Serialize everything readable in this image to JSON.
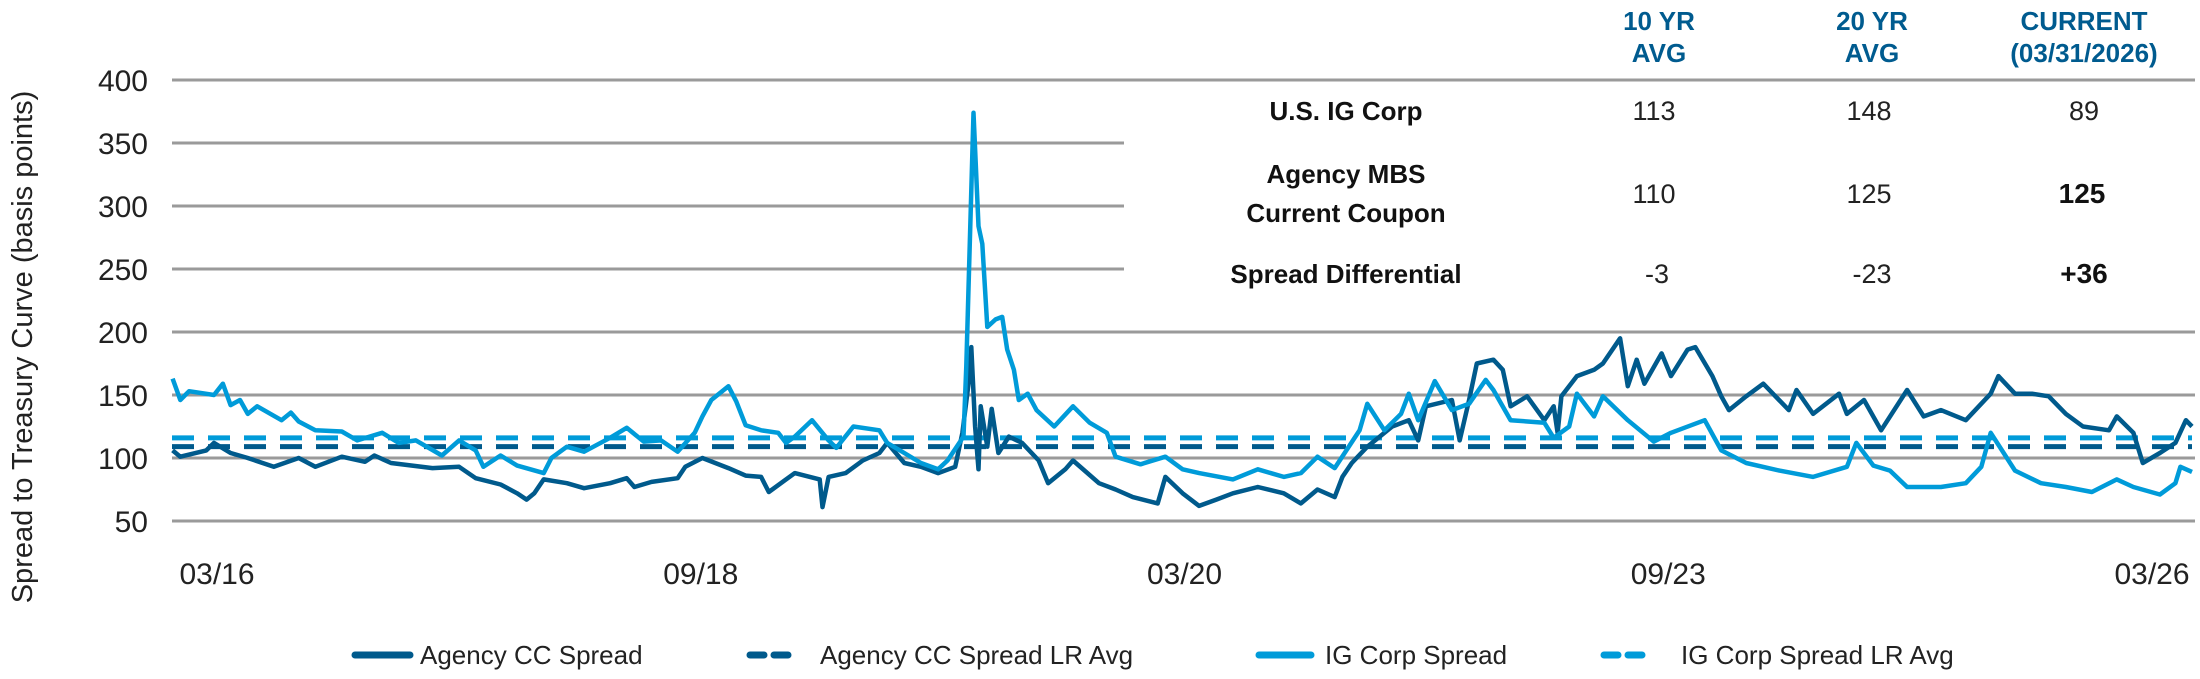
{
  "chart_data": {
    "type": "line",
    "ylabel": "Spread to Treasury Curve (basis points)",
    "ylim": [
      50,
      400
    ],
    "yticks": [
      "400",
      "350",
      "300",
      "250",
      "200",
      "150",
      "100",
      "50"
    ],
    "xlim": [
      "2016-03-31",
      "2026-03-31"
    ],
    "xticks": [
      "03/16",
      "09/18",
      "03/20",
      "09/23",
      "03/26"
    ],
    "grid": true,
    "legend_position": "bottom",
    "colors": {
      "agency": "#005a8c",
      "ig": "#009bd9",
      "grid": "#9a9a9a",
      "header": "#005b8f"
    },
    "series": [
      {
        "name": "Agency CC Spread",
        "style": "solid",
        "color": "#005a8c",
        "points": [
          [
            "2016-04-01",
            106
          ],
          [
            "2016-04-15",
            101
          ],
          [
            "2016-06-01",
            106
          ],
          [
            "2016-06-15",
            112
          ],
          [
            "2016-07-15",
            104
          ],
          [
            "2016-08-15",
            100
          ],
          [
            "2016-10-01",
            93
          ],
          [
            "2016-11-15",
            100
          ],
          [
            "2016-12-15",
            93
          ],
          [
            "2017-02-01",
            101
          ],
          [
            "2017-03-15",
            97
          ],
          [
            "2017-04-01",
            102
          ],
          [
            "2017-05-01",
            96
          ],
          [
            "2017-07-15",
            92
          ],
          [
            "2017-09-01",
            93
          ],
          [
            "2017-10-01",
            84
          ],
          [
            "2017-11-15",
            79
          ],
          [
            "2017-12-15",
            72
          ],
          [
            "2018-01-01",
            67
          ],
          [
            "2018-01-15",
            72
          ],
          [
            "2018-02-01",
            83
          ],
          [
            "2018-03-15",
            80
          ],
          [
            "2018-04-15",
            76
          ],
          [
            "2018-06-01",
            80
          ],
          [
            "2018-07-01",
            84
          ],
          [
            "2018-07-15",
            77
          ],
          [
            "2018-08-15",
            81
          ],
          [
            "2018-10-01",
            84
          ],
          [
            "2018-10-15",
            93
          ],
          [
            "2018-11-15",
            100
          ],
          [
            "2019-01-01",
            92
          ],
          [
            "2019-02-01",
            86
          ],
          [
            "2019-03-01",
            85
          ],
          [
            "2019-03-15",
            73
          ],
          [
            "2019-04-15",
            83
          ],
          [
            "2019-05-01",
            88
          ],
          [
            "2019-06-15",
            83
          ],
          [
            "2019-06-20",
            61
          ],
          [
            "2019-07-01",
            85
          ],
          [
            "2019-08-01",
            88
          ],
          [
            "2019-09-01",
            98
          ],
          [
            "2019-10-01",
            104
          ],
          [
            "2019-10-15",
            112
          ],
          [
            "2019-11-15",
            96
          ],
          [
            "2019-12-15",
            93
          ],
          [
            "2020-01-15",
            88
          ],
          [
            "2020-02-15",
            93
          ],
          [
            "2020-02-28",
            120
          ],
          [
            "2020-03-11",
            162
          ],
          [
            "2020-03-15",
            188
          ],
          [
            "2020-03-22",
            125
          ],
          [
            "2020-03-28",
            91
          ],
          [
            "2020-04-01",
            141
          ],
          [
            "2020-04-13",
            109
          ],
          [
            "2020-04-21",
            139
          ],
          [
            "2020-05-03",
            104
          ],
          [
            "2020-05-22",
            117
          ],
          [
            "2020-06-15",
            112
          ],
          [
            "2020-07-15",
            98
          ],
          [
            "2020-08-01",
            80
          ],
          [
            "2020-09-01",
            91
          ],
          [
            "2020-09-15",
            98
          ],
          [
            "2020-11-01",
            80
          ],
          [
            "2020-12-01",
            75
          ],
          [
            "2021-01-01",
            69
          ],
          [
            "2021-02-15",
            64
          ],
          [
            "2021-03-01",
            85
          ],
          [
            "2021-04-01",
            72
          ],
          [
            "2021-05-01",
            62
          ],
          [
            "2021-06-01",
            67
          ],
          [
            "2021-07-01",
            72
          ],
          [
            "2021-08-15",
            77
          ],
          [
            "2021-10-01",
            72
          ],
          [
            "2021-11-01",
            64
          ],
          [
            "2021-12-01",
            75
          ],
          [
            "2022-01-01",
            69
          ],
          [
            "2022-01-15",
            85
          ],
          [
            "2022-02-01",
            96
          ],
          [
            "2022-03-01",
            109
          ],
          [
            "2022-04-15",
            125
          ],
          [
            "2022-05-15",
            130
          ],
          [
            "2022-06-01",
            114
          ],
          [
            "2022-06-15",
            141
          ],
          [
            "2022-08-01",
            146
          ],
          [
            "2022-08-15",
            114
          ],
          [
            "2022-09-01",
            146
          ],
          [
            "2022-09-15",
            175
          ],
          [
            "2022-10-15",
            178
          ],
          [
            "2022-11-01",
            170
          ],
          [
            "2022-11-15",
            141
          ],
          [
            "2022-12-15",
            149
          ],
          [
            "2023-01-15",
            130
          ],
          [
            "2023-02-01",
            141
          ],
          [
            "2023-02-08",
            120
          ],
          [
            "2023-02-15",
            149
          ],
          [
            "2023-03-15",
            165
          ],
          [
            "2023-04-15",
            170
          ],
          [
            "2023-05-01",
            175
          ],
          [
            "2023-06-01",
            195
          ],
          [
            "2023-06-15",
            157
          ],
          [
            "2023-07-01",
            178
          ],
          [
            "2023-07-15",
            159
          ],
          [
            "2023-08-15",
            183
          ],
          [
            "2023-09-01",
            165
          ],
          [
            "2023-10-01",
            186
          ],
          [
            "2023-10-15",
            188
          ],
          [
            "2023-11-15",
            165
          ],
          [
            "2023-12-01",
            149
          ],
          [
            "2023-12-15",
            138
          ],
          [
            "2024-01-15",
            149
          ],
          [
            "2024-02-15",
            159
          ],
          [
            "2024-04-01",
            138
          ],
          [
            "2024-04-15",
            154
          ],
          [
            "2024-05-15",
            135
          ],
          [
            "2024-07-01",
            151
          ],
          [
            "2024-07-15",
            135
          ],
          [
            "2024-08-15",
            146
          ],
          [
            "2024-09-15",
            122
          ],
          [
            "2024-11-01",
            154
          ],
          [
            "2024-12-01",
            133
          ],
          [
            "2025-01-01",
            138
          ],
          [
            "2025-02-15",
            130
          ],
          [
            "2025-04-01",
            151
          ],
          [
            "2025-04-15",
            165
          ],
          [
            "2025-05-15",
            151
          ],
          [
            "2025-06-15",
            151
          ],
          [
            "2025-07-15",
            149
          ],
          [
            "2025-08-15",
            135
          ],
          [
            "2025-09-15",
            125
          ],
          [
            "2025-11-01",
            122
          ],
          [
            "2025-11-15",
            133
          ],
          [
            "2025-12-15",
            120
          ],
          [
            "2026-01-01",
            96
          ],
          [
            "2026-02-01",
            104
          ],
          [
            "2026-03-01",
            112
          ],
          [
            "2026-03-20",
            130
          ],
          [
            "2026-03-31",
            125
          ]
        ]
      },
      {
        "name": "Agency CC Spread LR Avg",
        "style": "dashed",
        "color": "#005a8c",
        "value": 109
      },
      {
        "name": "IG Corp Spread",
        "style": "solid",
        "color": "#009bd9",
        "points": [
          [
            "2016-04-01",
            163
          ],
          [
            "2016-04-15",
            146
          ],
          [
            "2016-05-01",
            153
          ],
          [
            "2016-06-15",
            150
          ],
          [
            "2016-07-01",
            159
          ],
          [
            "2016-07-15",
            142
          ],
          [
            "2016-08-01",
            146
          ],
          [
            "2016-08-15",
            135
          ],
          [
            "2016-09-01",
            141
          ],
          [
            "2016-10-15",
            130
          ],
          [
            "2016-11-01",
            136
          ],
          [
            "2016-11-15",
            129
          ],
          [
            "2016-12-15",
            122
          ],
          [
            "2017-02-01",
            121
          ],
          [
            "2017-03-01",
            114
          ],
          [
            "2017-04-15",
            120
          ],
          [
            "2017-05-15",
            112
          ],
          [
            "2017-06-15",
            114
          ],
          [
            "2017-08-01",
            102
          ],
          [
            "2017-09-01",
            114
          ],
          [
            "2017-10-01",
            106
          ],
          [
            "2017-10-15",
            93
          ],
          [
            "2017-11-15",
            102
          ],
          [
            "2017-12-15",
            94
          ],
          [
            "2018-02-01",
            88
          ],
          [
            "2018-02-15",
            100
          ],
          [
            "2018-03-15",
            109
          ],
          [
            "2018-04-15",
            105
          ],
          [
            "2018-06-01",
            116
          ],
          [
            "2018-07-01",
            124
          ],
          [
            "2018-08-01",
            113
          ],
          [
            "2018-09-01",
            114
          ],
          [
            "2018-10-01",
            105
          ],
          [
            "2018-11-01",
            120
          ],
          [
            "2018-11-15",
            133
          ],
          [
            "2018-12-01",
            146
          ],
          [
            "2019-01-01",
            157
          ],
          [
            "2019-01-15",
            145
          ],
          [
            "2019-02-01",
            126
          ],
          [
            "2019-03-01",
            122
          ],
          [
            "2019-04-01",
            120
          ],
          [
            "2019-04-15",
            112
          ],
          [
            "2019-05-01",
            117
          ],
          [
            "2019-06-01",
            130
          ],
          [
            "2019-07-01",
            114
          ],
          [
            "2019-07-15",
            108
          ],
          [
            "2019-08-15",
            125
          ],
          [
            "2019-10-01",
            122
          ],
          [
            "2019-10-15",
            112
          ],
          [
            "2019-11-15",
            104
          ],
          [
            "2019-12-15",
            96
          ],
          [
            "2020-01-15",
            91
          ],
          [
            "2020-02-01",
            98
          ],
          [
            "2020-03-01",
            117
          ],
          [
            "2020-03-06",
            173
          ],
          [
            "2020-03-19",
            374
          ],
          [
            "2020-03-28",
            284
          ],
          [
            "2020-04-04",
            270
          ],
          [
            "2020-04-13",
            204
          ],
          [
            "2020-04-28",
            210
          ],
          [
            "2020-05-10",
            212
          ],
          [
            "2020-05-19",
            186
          ],
          [
            "2020-05-31",
            170
          ],
          [
            "2020-06-09",
            146
          ],
          [
            "2020-06-25",
            151
          ],
          [
            "2020-07-11",
            138
          ],
          [
            "2020-08-12",
            125
          ],
          [
            "2020-09-15",
            141
          ],
          [
            "2020-10-15",
            128
          ],
          [
            "2020-11-15",
            120
          ],
          [
            "2020-12-01",
            101
          ],
          [
            "2021-01-15",
            95
          ],
          [
            "2021-03-01",
            101
          ],
          [
            "2021-04-01",
            91
          ],
          [
            "2021-05-01",
            88
          ],
          [
            "2021-07-01",
            83
          ],
          [
            "2021-08-15",
            91
          ],
          [
            "2021-10-01",
            85
          ],
          [
            "2021-11-01",
            88
          ],
          [
            "2021-12-01",
            101
          ],
          [
            "2022-01-01",
            92
          ],
          [
            "2022-02-15",
            122
          ],
          [
            "2022-03-01",
            143
          ],
          [
            "2022-04-01",
            122
          ],
          [
            "2022-05-01",
            135
          ],
          [
            "2022-05-15",
            151
          ],
          [
            "2022-06-01",
            130
          ],
          [
            "2022-07-01",
            161
          ],
          [
            "2022-08-01",
            138
          ],
          [
            "2022-09-01",
            143
          ],
          [
            "2022-10-01",
            162
          ],
          [
            "2022-10-15",
            154
          ],
          [
            "2022-11-15",
            130
          ],
          [
            "2023-01-15",
            128
          ],
          [
            "2023-02-01",
            116
          ],
          [
            "2023-03-01",
            125
          ],
          [
            "2023-03-15",
            151
          ],
          [
            "2023-04-15",
            133
          ],
          [
            "2023-05-01",
            149
          ],
          [
            "2023-06-15",
            130
          ],
          [
            "2023-08-01",
            113
          ],
          [
            "2023-09-01",
            120
          ],
          [
            "2023-11-01",
            130
          ],
          [
            "2023-12-01",
            106
          ],
          [
            "2024-01-15",
            96
          ],
          [
            "2024-03-15",
            90
          ],
          [
            "2024-05-15",
            85
          ],
          [
            "2024-07-15",
            93
          ],
          [
            "2024-08-01",
            112
          ],
          [
            "2024-09-01",
            94
          ],
          [
            "2024-10-01",
            90
          ],
          [
            "2024-11-01",
            77
          ],
          [
            "2025-01-01",
            77
          ],
          [
            "2025-02-15",
            80
          ],
          [
            "2025-03-15",
            93
          ],
          [
            "2025-04-01",
            120
          ],
          [
            "2025-05-15",
            90
          ],
          [
            "2025-07-01",
            80
          ],
          [
            "2025-08-15",
            77
          ],
          [
            "2025-10-01",
            73
          ],
          [
            "2025-11-15",
            83
          ],
          [
            "2025-12-15",
            77
          ],
          [
            "2026-02-01",
            71
          ],
          [
            "2026-03-01",
            80
          ],
          [
            "2026-03-10",
            93
          ],
          [
            "2026-03-31",
            89
          ]
        ]
      },
      {
        "name": "IG Corp Spread LR Avg",
        "style": "dashed",
        "color": "#009bd9",
        "value": 116
      }
    ],
    "table": {
      "headers": [
        [
          "10 YR",
          "AVG"
        ],
        [
          "20 YR",
          "AVG"
        ],
        [
          "CURRENT",
          "(03/31/2026)"
        ]
      ],
      "rows": [
        {
          "label": [
            "U.S. IG Corp"
          ],
          "values": [
            "113",
            "148",
            "89"
          ],
          "bold_current": false
        },
        {
          "label": [
            "Agency MBS",
            "Current Coupon"
          ],
          "values": [
            "110",
            "125",
            "125"
          ],
          "bold_current": true
        },
        {
          "label": [
            "Spread Differential"
          ],
          "values": [
            "-3",
            "-23",
            "+36"
          ],
          "bold_current": true
        }
      ]
    }
  }
}
